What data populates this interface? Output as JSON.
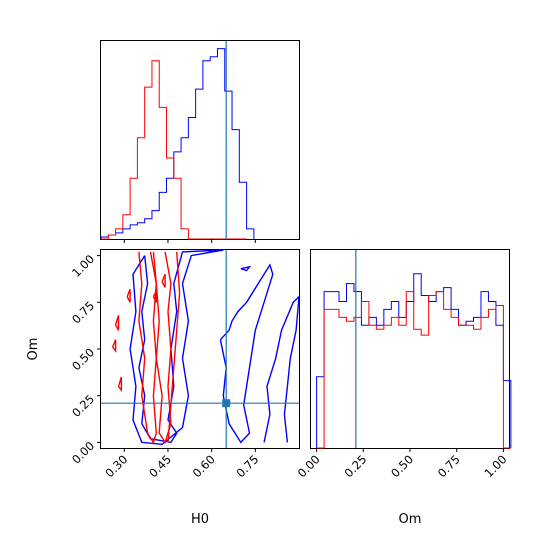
{
  "chart_data": {
    "type": "corner",
    "parameters": [
      "H0",
      "Om"
    ],
    "truth": {
      "H0": 0.65,
      "Om": 0.21
    },
    "colors": {
      "blue": "#0000ff",
      "red": "#ff0000",
      "truth": "#1f77b4"
    },
    "axes": {
      "H0": {
        "range": [
          0.22,
          0.9
        ],
        "ticks": [
          "0.30",
          "0.45",
          "0.60",
          "0.75"
        ],
        "tick_values": [
          0.3,
          0.45,
          0.6,
          0.75
        ],
        "xlabel": "H0"
      },
      "Om": {
        "range": [
          -0.03,
          1.03
        ],
        "ticks": [
          "0.00",
          "0.25",
          "0.50",
          "0.75",
          "1.00"
        ],
        "tick_values": [
          0.0,
          0.25,
          0.5,
          0.75,
          1.0
        ],
        "xlabel": "Om",
        "ylabel": "Om"
      }
    },
    "hist_H0": {
      "edges_start": 0.22,
      "bin_width": 0.025,
      "blue": [
        0.01,
        0.02,
        0.03,
        0.05,
        0.07,
        0.08,
        0.1,
        0.14,
        0.23,
        0.3,
        0.43,
        0.5,
        0.6,
        0.74,
        0.88,
        0.9,
        0.94,
        0.73,
        0.54,
        0.28,
        0.05
      ],
      "red": [
        0.0,
        0.02,
        0.05,
        0.12,
        0.3,
        0.5,
        0.75,
        0.88,
        0.65,
        0.4,
        0.3,
        0.05,
        0.0,
        0.0,
        0.0,
        0.0,
        0.0,
        0.0,
        0.0,
        0.0
      ]
    },
    "hist_Om": {
      "edges_start": 0.0,
      "bin_width": 0.04,
      "blue": [
        0.36,
        0.79,
        0.79,
        0.74,
        0.83,
        0.79,
        0.62,
        0.66,
        0.62,
        0.7,
        0.74,
        0.66,
        0.74,
        0.88,
        0.77,
        0.74,
        0.79,
        0.81,
        0.7,
        0.62,
        0.64,
        0.66,
        0.79,
        0.74,
        0.62,
        0.34
      ],
      "red": [
        0.0,
        0.7,
        0.7,
        0.66,
        0.64,
        0.66,
        0.74,
        0.62,
        0.6,
        0.62,
        0.66,
        0.62,
        0.79,
        0.6,
        0.57,
        0.77,
        0.79,
        0.7,
        0.66,
        0.62,
        0.62,
        0.6,
        0.66,
        0.7,
        0.72,
        0.0
      ]
    },
    "contours": {
      "blue": [
        [
          [
            0.37,
            1.0
          ],
          [
            0.38,
            0.85
          ],
          [
            0.36,
            0.7
          ],
          [
            0.37,
            0.55
          ],
          [
            0.35,
            0.4
          ],
          [
            0.37,
            0.25
          ],
          [
            0.36,
            0.1
          ],
          [
            0.39,
            0.02
          ],
          [
            0.46,
            0.0
          ],
          [
            0.48,
            0.05
          ],
          [
            0.45,
            0.12
          ],
          [
            0.47,
            0.3
          ],
          [
            0.46,
            0.5
          ],
          [
            0.48,
            0.7
          ],
          [
            0.47,
            0.85
          ],
          [
            0.5,
            1.02
          ],
          [
            0.64,
            1.03
          ],
          [
            0.53,
            1.0
          ],
          [
            0.5,
            0.85
          ],
          [
            0.52,
            0.65
          ],
          [
            0.5,
            0.45
          ],
          [
            0.52,
            0.25
          ],
          [
            0.5,
            0.08
          ],
          [
            0.43,
            -0.01
          ],
          [
            0.36,
            0.0
          ],
          [
            0.33,
            0.12
          ],
          [
            0.34,
            0.3
          ],
          [
            0.32,
            0.5
          ],
          [
            0.34,
            0.7
          ],
          [
            0.33,
            0.9
          ],
          [
            0.37,
            1.0
          ]
        ],
        [
          [
            0.63,
            0.55
          ],
          [
            0.65,
            0.4
          ],
          [
            0.64,
            0.25
          ],
          [
            0.66,
            0.1
          ],
          [
            0.7,
            0.0
          ],
          [
            0.73,
            0.05
          ],
          [
            0.71,
            0.2
          ],
          [
            0.73,
            0.4
          ],
          [
            0.75,
            0.6
          ],
          [
            0.78,
            0.75
          ],
          [
            0.81,
            0.9
          ],
          [
            0.8,
            0.95
          ],
          [
            0.76,
            0.85
          ],
          [
            0.72,
            0.75
          ],
          [
            0.69,
            0.7
          ],
          [
            0.67,
            0.65
          ],
          [
            0.66,
            0.6
          ],
          [
            0.63,
            0.55
          ]
        ],
        [
          [
            0.78,
            0.0
          ],
          [
            0.8,
            0.15
          ],
          [
            0.79,
            0.3
          ],
          [
            0.82,
            0.45
          ],
          [
            0.84,
            0.6
          ],
          [
            0.88,
            0.75
          ],
          [
            0.9,
            0.78
          ],
          [
            0.89,
            0.6
          ],
          [
            0.87,
            0.45
          ],
          [
            0.86,
            0.3
          ],
          [
            0.85,
            0.15
          ],
          [
            0.86,
            0.0
          ]
        ],
        [
          [
            0.7,
            0.93
          ],
          [
            0.73,
            0.94
          ],
          [
            0.72,
            0.92
          ],
          [
            0.7,
            0.93
          ]
        ]
      ],
      "red": [
        [
          [
            0.35,
            1.02
          ],
          [
            0.36,
            0.85
          ],
          [
            0.35,
            0.65
          ],
          [
            0.37,
            0.45
          ],
          [
            0.36,
            0.25
          ],
          [
            0.38,
            0.05
          ],
          [
            0.4,
            0.0
          ],
          [
            0.41,
            0.05
          ],
          [
            0.4,
            0.25
          ],
          [
            0.41,
            0.45
          ],
          [
            0.4,
            0.65
          ],
          [
            0.41,
            0.85
          ],
          [
            0.39,
            1.02
          ]
        ],
        [
          [
            0.4,
            1.02
          ],
          [
            0.41,
            0.85
          ],
          [
            0.42,
            0.65
          ],
          [
            0.41,
            0.45
          ],
          [
            0.43,
            0.25
          ],
          [
            0.42,
            0.05
          ],
          [
            0.44,
            0.0
          ],
          [
            0.46,
            0.1
          ],
          [
            0.45,
            0.3
          ],
          [
            0.46,
            0.5
          ],
          [
            0.45,
            0.7
          ],
          [
            0.46,
            0.85
          ],
          [
            0.44,
            1.02
          ]
        ],
        [
          [
            0.48,
            1.02
          ],
          [
            0.49,
            0.8
          ],
          [
            0.48,
            0.6
          ],
          [
            0.47,
            0.4
          ],
          [
            0.46,
            0.2
          ],
          [
            0.45,
            0.0
          ]
        ],
        [
          [
            0.27,
            0.63
          ],
          [
            0.28,
            0.68
          ],
          [
            0.28,
            0.6
          ],
          [
            0.27,
            0.63
          ]
        ],
        [
          [
            0.26,
            0.51
          ],
          [
            0.27,
            0.55
          ],
          [
            0.27,
            0.49
          ],
          [
            0.26,
            0.51
          ]
        ],
        [
          [
            0.28,
            0.3
          ],
          [
            0.29,
            0.35
          ],
          [
            0.29,
            0.28
          ],
          [
            0.28,
            0.3
          ]
        ],
        [
          [
            0.31,
            0.78
          ],
          [
            0.32,
            0.82
          ],
          [
            0.32,
            0.75
          ],
          [
            0.31,
            0.78
          ]
        ],
        [
          [
            0.4,
            0.78
          ],
          [
            0.41,
            0.81
          ],
          [
            0.41,
            0.75
          ],
          [
            0.4,
            0.78
          ]
        ],
        [
          [
            0.43,
            0.86
          ],
          [
            0.44,
            0.9
          ],
          [
            0.44,
            0.83
          ],
          [
            0.43,
            0.86
          ]
        ]
      ]
    }
  }
}
